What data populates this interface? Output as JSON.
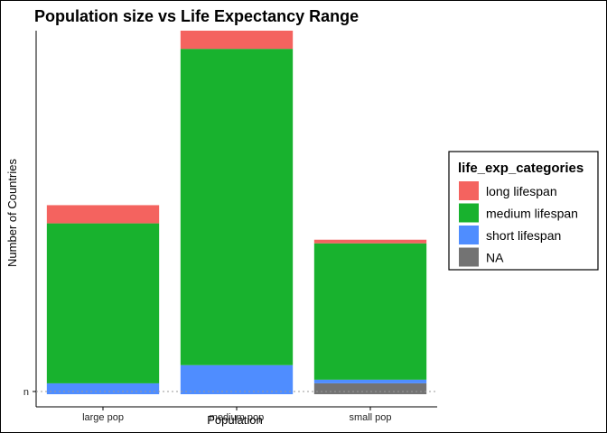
{
  "chart_data": {
    "type": "bar",
    "stacked": true,
    "title": "Population size vs Life Expectancy Range",
    "xlabel": "Population",
    "ylabel": "Number of Countries",
    "categories": [
      "large pop",
      "medium pop",
      "small pop"
    ],
    "y_tick_labels": [
      "n"
    ],
    "ylim": [
      0,
      100
    ],
    "series": [
      {
        "name": "NA",
        "color": "#737373",
        "values": [
          0,
          0,
          3
        ]
      },
      {
        "name": "short lifespan",
        "color": "#4F8DFF",
        "values": [
          3,
          8,
          1
        ]
      },
      {
        "name": "medium lifespan",
        "color": "#18B22E",
        "values": [
          44,
          87,
          37.5
        ]
      },
      {
        "name": "long lifespan",
        "color": "#F4635F",
        "values": [
          5,
          5,
          1
        ]
      }
    ],
    "legend": {
      "title": "life_exp_categories",
      "position": "right",
      "order": [
        "long lifespan",
        "medium lifespan",
        "short lifespan",
        "NA"
      ]
    },
    "grid": false
  }
}
